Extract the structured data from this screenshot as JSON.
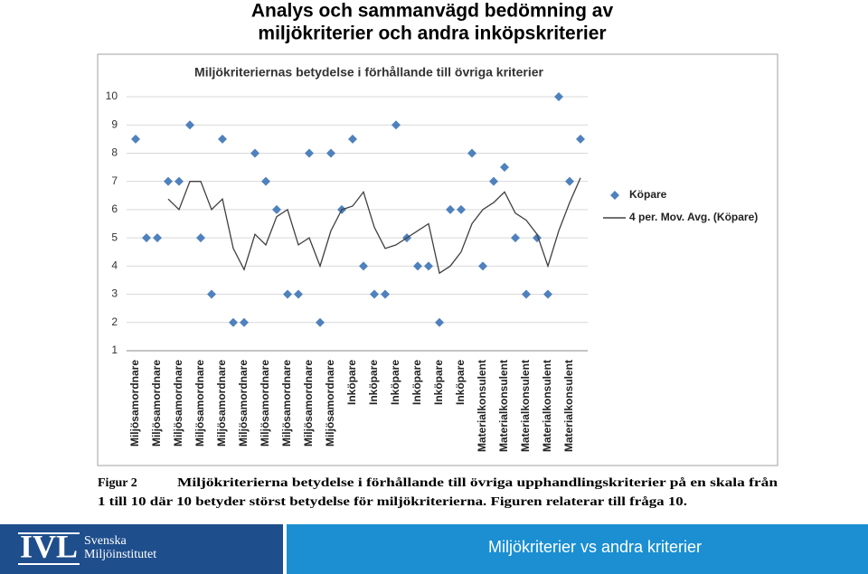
{
  "title": [
    "Analys och sammanvägd bedömning av",
    "miljökriterier och andra inköpskriterier"
  ],
  "chart_data": {
    "type": "line",
    "title": "Miljökriteriernas betydelse i förhållande till övriga kriterier",
    "categories": [
      "Miljösamordnare",
      null,
      "Miljösamordnare",
      null,
      "Miljösamordnare",
      null,
      "Miljösamordnare",
      null,
      "Miljösamordnare",
      null,
      "Miljösamordnare",
      null,
      "Miljösamordnare",
      null,
      "Miljösamordnare",
      null,
      "Miljösamordnare",
      null,
      "Miljösamordnare",
      null,
      "Inköpare",
      null,
      "Inköpare",
      null,
      "Inköpare",
      null,
      "Inköpare",
      null,
      "Inköpare",
      null,
      "Inköpare",
      null,
      "Materialkonsulent",
      null,
      "Materialkonsulent",
      null,
      "Materialkonsulent",
      null,
      "Materialkonsulent",
      null,
      "Materialkonsulent",
      null
    ],
    "series": [
      {
        "name": "Köpare",
        "color": "#4f81bd",
        "marker": "diamond",
        "values": [
          8.5,
          5,
          5,
          7,
          7,
          9,
          5,
          3,
          8.5,
          2,
          2,
          8,
          7,
          6,
          3,
          3,
          8,
          2,
          8,
          6,
          8.5,
          4,
          3,
          3,
          9,
          5,
          4,
          4,
          2,
          6,
          6,
          8,
          4,
          7,
          7.5,
          5,
          3,
          5,
          3,
          10,
          7,
          8.5
        ]
      },
      {
        "name": "4 per. Mov. Avg. (Köpare)",
        "color": "#404040",
        "line": "solid",
        "values": [
          null,
          null,
          null,
          6.375,
          6,
          7,
          7,
          6,
          6.375,
          4.625,
          3.875,
          5.125,
          4.75,
          5.75,
          6,
          4.75,
          5,
          4,
          5.25,
          6,
          6.125,
          6.625,
          5.375,
          4.625,
          4.75,
          5,
          5.25,
          5.5,
          3.75,
          4,
          4.5,
          5.5,
          6,
          6.25,
          6.625,
          5.875,
          5.625,
          5.125,
          4,
          5.25,
          6.25,
          7.125
        ]
      }
    ],
    "ylim": [
      1,
      10
    ],
    "yticks": [
      1,
      2,
      3,
      4,
      5,
      6,
      7,
      8,
      9,
      10
    ],
    "grid": true,
    "legend": "right"
  },
  "figure": {
    "label": "Figur 2",
    "caption": [
      "Miljökriterierna betydelse i förhållande till övriga upphandlingskriterier på en skala från",
      "1 till 10 där 10 betyder störst betydelse för miljökriterierna. Figuren relaterar till fråga 10."
    ]
  },
  "footer": {
    "logo": "IVL",
    "org": [
      "Svenska",
      "Miljöinstitutet"
    ],
    "text": "Miljökriterier vs andra kriterier"
  }
}
